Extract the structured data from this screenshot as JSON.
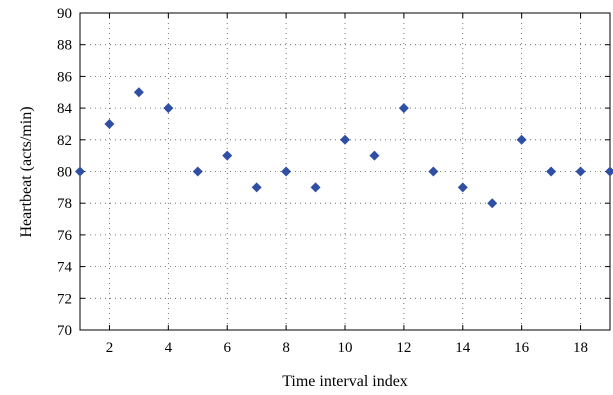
{
  "chart_data": {
    "type": "scatter",
    "title": "",
    "xlabel": "Time interval index",
    "ylabel": "Heartbeat (acts/min)",
    "xlim": [
      1,
      19
    ],
    "ylim": [
      70,
      90
    ],
    "x_ticks": [
      "2",
      "4",
      "6",
      "8",
      "10",
      "12",
      "14",
      "16",
      "18"
    ],
    "y_ticks": [
      "70",
      "72",
      "74",
      "76",
      "78",
      "80",
      "82",
      "84",
      "86",
      "88",
      "90"
    ],
    "grid": true,
    "marker_color": "#2f4fa5",
    "series": [
      {
        "x": [
          1,
          2,
          3,
          4,
          5,
          6,
          7,
          8,
          9,
          10,
          11,
          12,
          13,
          14,
          15,
          16,
          17,
          18,
          19
        ],
        "y": [
          80,
          83,
          85,
          84,
          80,
          81,
          79,
          80,
          79,
          82,
          81,
          84,
          80,
          79,
          78,
          82,
          80,
          80,
          80
        ]
      }
    ]
  }
}
